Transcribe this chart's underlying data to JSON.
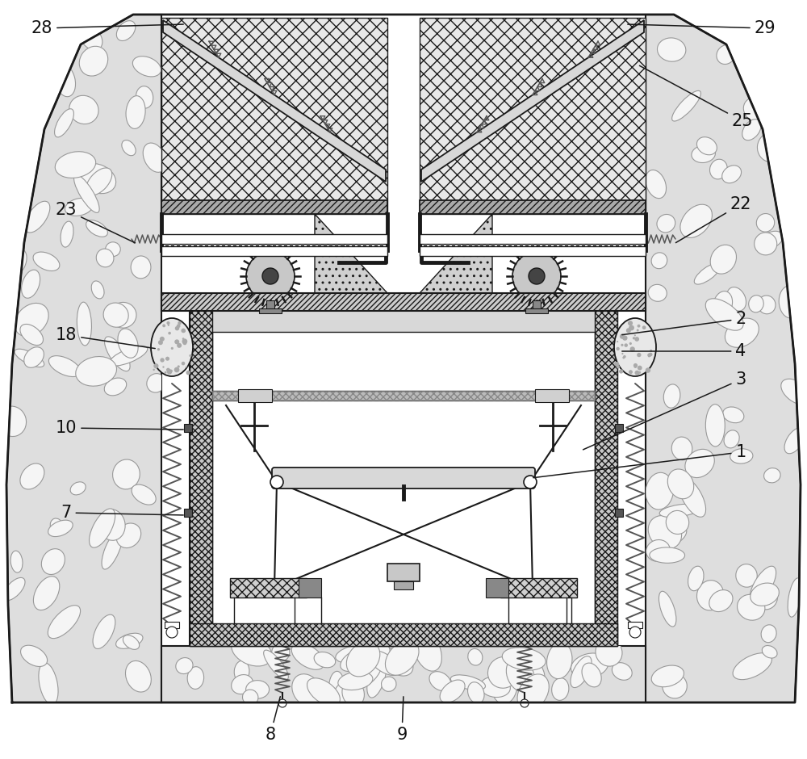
{
  "fig_width": 10.0,
  "fig_height": 9.4,
  "dpi": 100,
  "bg_color": "#ffffff",
  "lc": "#1a1a1a",
  "label_fontsize": 15,
  "label_color": "#111111"
}
